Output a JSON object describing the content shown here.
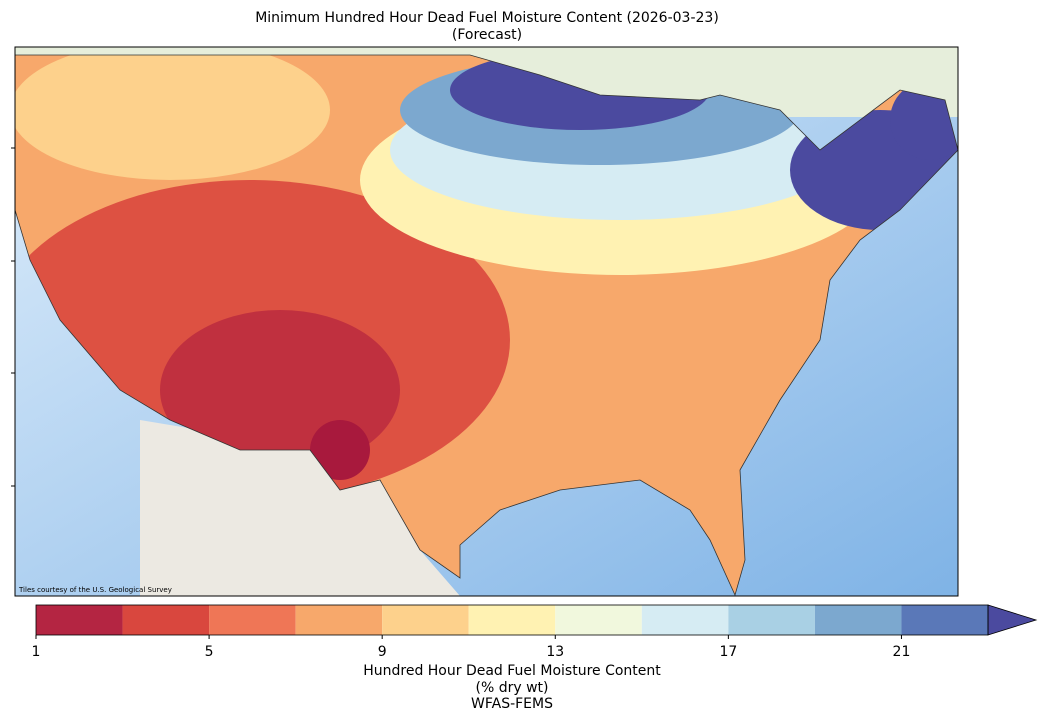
{
  "title": [
    "Minimum Hundred Hour Dead Fuel Moisture Content (2026-03-23)",
    "(Forecast)"
  ],
  "attribution": "Tiles courtesy of the U.S. Geological Survey",
  "colorbar": {
    "bounds": [
      1,
      3,
      5,
      7,
      9,
      11,
      13,
      15,
      17,
      19,
      21,
      23
    ],
    "colors": [
      "#b42542",
      "#d9473e",
      "#ef7656",
      "#f7a86b",
      "#fdd18c",
      "#fff2b2",
      "#f1f8dd",
      "#d6ecf3",
      "#a9d0e4",
      "#7ca8cf",
      "#5a78b8"
    ],
    "extend_color": "#4b4a9f",
    "ticks": [
      1,
      5,
      9,
      13,
      17,
      21
    ],
    "label": [
      "Hundred Hour Dead Fuel Moisture Content",
      "(% dry wt)",
      "WFAS-FEMS"
    ]
  }
}
